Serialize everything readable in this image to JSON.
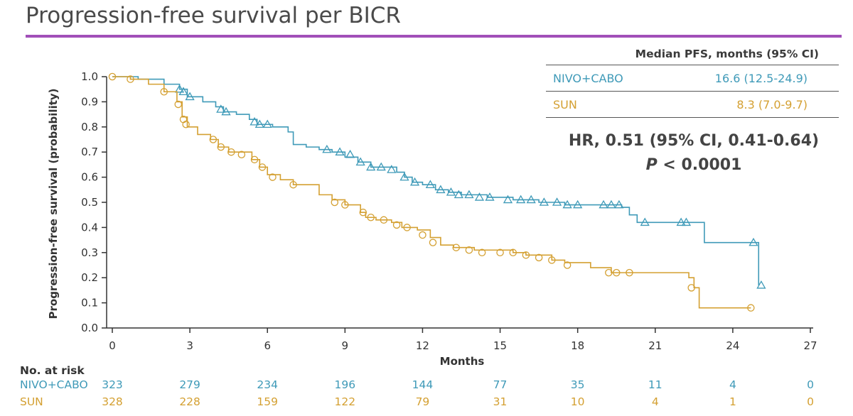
{
  "title": "Progression-free survival per BICR",
  "median_table": {
    "header": "Median PFS, months (95% CI)",
    "rows": [
      {
        "name": "NIVO+CABO",
        "value": "16.6 (12.5-24.9)"
      },
      {
        "name": "SUN",
        "value": "8.3 (7.0-9.7)"
      }
    ]
  },
  "hr_text": "HR, 0.51 (95% CI, 0.41-0.64)",
  "p_label": "P",
  "p_value_text": "< 0.0001",
  "risk_table": {
    "heading": "No. at risk",
    "timepoints": [
      0,
      3,
      6,
      9,
      12,
      15,
      18,
      21,
      24,
      27
    ],
    "rows": [
      {
        "name": "NIVO+CABO",
        "values": [
          "323",
          "279",
          "234",
          "196",
          "144",
          "77",
          "35",
          "11",
          "4",
          "0"
        ]
      },
      {
        "name": "SUN",
        "values": [
          "328",
          "228",
          "159",
          "122",
          "79",
          "31",
          "10",
          "4",
          "1",
          "0"
        ]
      }
    ]
  },
  "chart_data": {
    "type": "line",
    "step": true,
    "title": "",
    "xlabel": "Months",
    "ylabel": "Progression-free survival (probability)",
    "xlim": [
      0,
      27
    ],
    "ylim": [
      0,
      1.0
    ],
    "xticks": [
      0,
      3,
      6,
      9,
      12,
      15,
      18,
      21,
      24,
      27
    ],
    "yticks": [
      "0.0",
      "0.1",
      "0.2",
      "0.3",
      "0.4",
      "0.5",
      "0.6",
      "0.7",
      "0.8",
      "0.9",
      "1.0"
    ],
    "grid": false,
    "colors": {
      "NIVO+CABO": "#3f9ab8",
      "SUN": "#d4a032",
      "axis": "#333333"
    },
    "series": [
      {
        "name": "NIVO+CABO",
        "marker": "triangle",
        "points": [
          [
            0,
            1.0
          ],
          [
            1.0,
            0.99
          ],
          [
            2.0,
            0.97
          ],
          [
            2.6,
            0.95
          ],
          [
            2.9,
            0.92
          ],
          [
            3.5,
            0.9
          ],
          [
            4.0,
            0.88
          ],
          [
            4.3,
            0.86
          ],
          [
            4.8,
            0.85
          ],
          [
            5.3,
            0.83
          ],
          [
            5.6,
            0.81
          ],
          [
            6.2,
            0.8
          ],
          [
            6.8,
            0.78
          ],
          [
            7.0,
            0.73
          ],
          [
            7.5,
            0.72
          ],
          [
            8.0,
            0.71
          ],
          [
            8.5,
            0.7
          ],
          [
            9.0,
            0.68
          ],
          [
            9.5,
            0.66
          ],
          [
            10.0,
            0.64
          ],
          [
            11.0,
            0.62
          ],
          [
            11.3,
            0.6
          ],
          [
            11.6,
            0.58
          ],
          [
            12.0,
            0.57
          ],
          [
            12.5,
            0.55
          ],
          [
            13.0,
            0.54
          ],
          [
            13.5,
            0.53
          ],
          [
            14.5,
            0.52
          ],
          [
            15.5,
            0.51
          ],
          [
            16.5,
            0.5
          ],
          [
            17.5,
            0.49
          ],
          [
            19.7,
            0.48
          ],
          [
            20.0,
            0.45
          ],
          [
            20.3,
            0.42
          ],
          [
            22.0,
            0.42
          ],
          [
            22.9,
            0.34
          ],
          [
            24.8,
            0.34
          ],
          [
            25.0,
            0.17
          ]
        ],
        "censored": [
          [
            2.6,
            0.95
          ],
          [
            2.75,
            0.94
          ],
          [
            3.0,
            0.92
          ],
          [
            4.2,
            0.87
          ],
          [
            4.4,
            0.86
          ],
          [
            5.5,
            0.82
          ],
          [
            5.7,
            0.81
          ],
          [
            6.0,
            0.81
          ],
          [
            8.3,
            0.71
          ],
          [
            8.8,
            0.7
          ],
          [
            9.2,
            0.69
          ],
          [
            9.6,
            0.66
          ],
          [
            10.0,
            0.64
          ],
          [
            10.4,
            0.64
          ],
          [
            10.8,
            0.63
          ],
          [
            11.3,
            0.6
          ],
          [
            11.7,
            0.58
          ],
          [
            12.3,
            0.57
          ],
          [
            12.7,
            0.55
          ],
          [
            13.1,
            0.54
          ],
          [
            13.4,
            0.53
          ],
          [
            13.8,
            0.53
          ],
          [
            14.2,
            0.52
          ],
          [
            14.6,
            0.52
          ],
          [
            15.3,
            0.51
          ],
          [
            15.8,
            0.51
          ],
          [
            16.2,
            0.51
          ],
          [
            16.7,
            0.5
          ],
          [
            17.2,
            0.5
          ],
          [
            17.6,
            0.49
          ],
          [
            18.0,
            0.49
          ],
          [
            19.0,
            0.49
          ],
          [
            19.3,
            0.49
          ],
          [
            19.6,
            0.49
          ],
          [
            20.6,
            0.42
          ],
          [
            22.0,
            0.42
          ],
          [
            22.2,
            0.42
          ],
          [
            24.8,
            0.34
          ],
          [
            25.1,
            0.17
          ]
        ]
      },
      {
        "name": "SUN",
        "marker": "circle",
        "points": [
          [
            0,
            1.0
          ],
          [
            0.7,
            0.99
          ],
          [
            1.4,
            0.97
          ],
          [
            2.0,
            0.94
          ],
          [
            2.5,
            0.9
          ],
          [
            2.7,
            0.84
          ],
          [
            2.9,
            0.8
          ],
          [
            3.3,
            0.77
          ],
          [
            3.8,
            0.75
          ],
          [
            4.1,
            0.72
          ],
          [
            4.5,
            0.7
          ],
          [
            5.4,
            0.67
          ],
          [
            5.7,
            0.64
          ],
          [
            6.0,
            0.61
          ],
          [
            6.5,
            0.59
          ],
          [
            7.0,
            0.57
          ],
          [
            8.0,
            0.53
          ],
          [
            8.5,
            0.51
          ],
          [
            9.0,
            0.49
          ],
          [
            9.6,
            0.46
          ],
          [
            9.8,
            0.44
          ],
          [
            10.2,
            0.43
          ],
          [
            10.8,
            0.42
          ],
          [
            11.2,
            0.4
          ],
          [
            11.8,
            0.39
          ],
          [
            12.3,
            0.36
          ],
          [
            12.7,
            0.33
          ],
          [
            13.2,
            0.32
          ],
          [
            14.0,
            0.31
          ],
          [
            15.5,
            0.3
          ],
          [
            16.0,
            0.29
          ],
          [
            17.0,
            0.27
          ],
          [
            17.5,
            0.26
          ],
          [
            18.5,
            0.24
          ],
          [
            19.3,
            0.22
          ],
          [
            22.3,
            0.2
          ],
          [
            22.5,
            0.16
          ],
          [
            22.7,
            0.08
          ],
          [
            24.7,
            0.08
          ]
        ],
        "censored": [
          [
            0,
            1.0
          ],
          [
            0.7,
            0.99
          ],
          [
            2.0,
            0.94
          ],
          [
            2.55,
            0.89
          ],
          [
            2.75,
            0.83
          ],
          [
            2.85,
            0.81
          ],
          [
            3.9,
            0.75
          ],
          [
            4.2,
            0.72
          ],
          [
            4.6,
            0.7
          ],
          [
            5.0,
            0.69
          ],
          [
            5.5,
            0.67
          ],
          [
            5.8,
            0.64
          ],
          [
            6.2,
            0.6
          ],
          [
            7.0,
            0.57
          ],
          [
            8.6,
            0.5
          ],
          [
            9.0,
            0.49
          ],
          [
            9.7,
            0.46
          ],
          [
            10.0,
            0.44
          ],
          [
            10.5,
            0.43
          ],
          [
            11.0,
            0.41
          ],
          [
            11.4,
            0.4
          ],
          [
            12.0,
            0.37
          ],
          [
            12.4,
            0.34
          ],
          [
            13.3,
            0.32
          ],
          [
            13.8,
            0.31
          ],
          [
            14.3,
            0.3
          ],
          [
            15.0,
            0.3
          ],
          [
            15.5,
            0.3
          ],
          [
            16.0,
            0.29
          ],
          [
            16.5,
            0.28
          ],
          [
            17.0,
            0.27
          ],
          [
            17.6,
            0.25
          ],
          [
            19.2,
            0.22
          ],
          [
            19.5,
            0.22
          ],
          [
            20.0,
            0.22
          ],
          [
            22.4,
            0.16
          ],
          [
            24.7,
            0.08
          ]
        ]
      }
    ]
  }
}
